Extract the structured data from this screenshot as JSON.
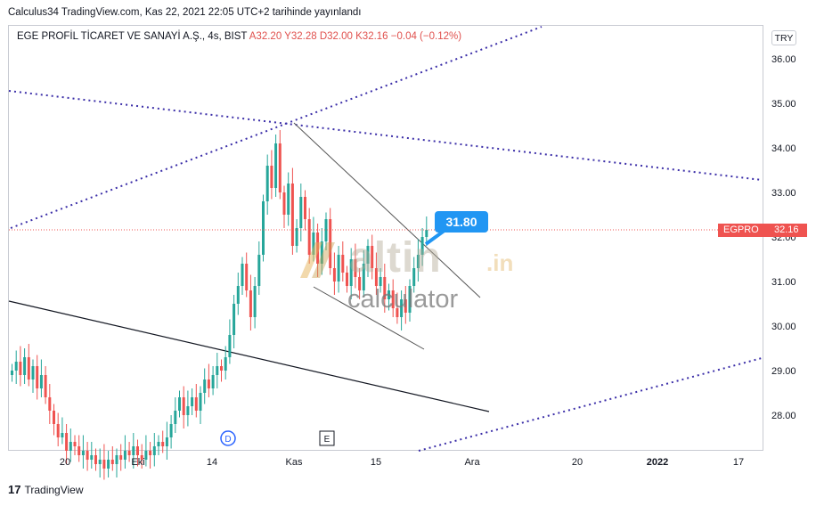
{
  "caption": "Calculus34 TradingView.com, Kas 22, 2021 22:05 UTC+2 tarihinde yayınlandı",
  "legend": {
    "symbol_line": "EGE PROFİL TİCARET VE SANAYİ A.Ş., 4s, BIST",
    "ohlc_line": "A32.20  Y32.28  D32.00  K32.16  −0.04 (−0.12%)"
  },
  "currency": "TRY",
  "last_price": {
    "ticker": "EGPRO",
    "value": "32.16"
  },
  "callout": "31.80",
  "watermark": {
    "brand": "altin",
    "tld": ".in",
    "sub": "calculator"
  },
  "footer": {
    "logo": "17",
    "text": "TradingView"
  },
  "colors": {
    "up": "#26a69a",
    "down": "#ef5350",
    "trend_dotted": "#3b2ea8",
    "callout": "#2196f3"
  },
  "chart_data": {
    "type": "candlestick",
    "y_axis": {
      "ticks": [
        "36.00",
        "35.00",
        "34.00",
        "33.00",
        "32.00",
        "31.00",
        "30.00",
        "29.00",
        "28.00"
      ],
      "range": [
        27.2,
        36.9
      ]
    },
    "x_axis": {
      "tick_labels": [
        "20",
        "Eki",
        "14",
        "Kas",
        "15",
        "Ara",
        "20",
        "2022",
        "17"
      ]
    },
    "event_markers": [
      {
        "label": "D",
        "near": "14"
      },
      {
        "label": "E",
        "near": "Kas"
      }
    ],
    "close_series": [
      29.0,
      29.2,
      28.9,
      29.3,
      28.8,
      29.1,
      28.6,
      28.9,
      28.4,
      28.1,
      27.8,
      27.5,
      27.6,
      27.2,
      27.4,
      27.3,
      27.1,
      27.2,
      27.0,
      27.1,
      26.9,
      27.0,
      26.8,
      27.0,
      26.9,
      27.1,
      27.0,
      27.2,
      27.1,
      27.3,
      27.1,
      27.0,
      27.2,
      27.1,
      27.3,
      27.4,
      27.3,
      27.5,
      27.8,
      28.1,
      28.4,
      28.0,
      28.2,
      28.4,
      28.1,
      28.5,
      28.8,
      28.6,
      28.9,
      29.1,
      29.0,
      29.3,
      29.8,
      30.5,
      30.9,
      31.4,
      30.8,
      30.2,
      30.9,
      31.6,
      32.8,
      33.6,
      33.1,
      34.1,
      33.0,
      32.5,
      33.2,
      31.8,
      32.2,
      32.9,
      32.4,
      31.6,
      32.1,
      31.4,
      31.9,
      32.4,
      31.3,
      31.0,
      31.6,
      31.2,
      30.9,
      31.5,
      31.1,
      30.8,
      31.4,
      31.8,
      31.3,
      30.9,
      31.1,
      30.6,
      30.8,
      30.4,
      30.2,
      30.6,
      30.3,
      30.9,
      31.3,
      31.6,
      32.0,
      32.16
    ],
    "current_price": 32.16
  }
}
